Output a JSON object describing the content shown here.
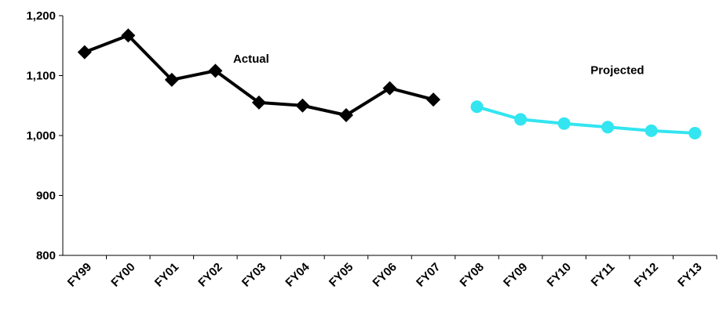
{
  "chart_data": {
    "type": "line",
    "categories": [
      "FY99",
      "FY00",
      "FY01",
      "FY02",
      "FY03",
      "FY04",
      "FY05",
      "FY06",
      "FY07",
      "FY08",
      "FY09",
      "FY10",
      "FY11",
      "FY12",
      "FY13"
    ],
    "series": [
      {
        "name": "Actual",
        "color": "#000000",
        "marker": "diamond",
        "values": [
          1139,
          1167,
          1093,
          1108,
          1055,
          1050,
          1034,
          1079,
          1060,
          null,
          null,
          null,
          null,
          null,
          null
        ]
      },
      {
        "name": "Projected",
        "color": "#33e5f0",
        "marker": "circle",
        "values": [
          null,
          null,
          null,
          null,
          null,
          null,
          null,
          null,
          null,
          1048,
          1027,
          1020,
          1014,
          1008,
          1004
        ]
      }
    ],
    "ylim": [
      800,
      1200
    ],
    "yticks": [
      800,
      900,
      {
        "value": 1000,
        "label": "1,000"
      },
      {
        "value": 1100,
        "label": "1,100"
      },
      {
        "value": 1200,
        "label": "1,200"
      }
    ],
    "grid": false
  }
}
